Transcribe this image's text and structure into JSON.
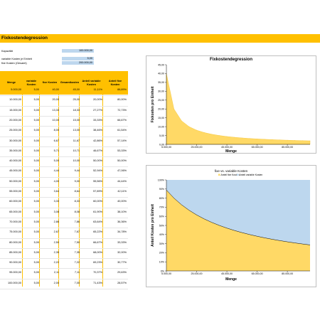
{
  "sheet": {
    "title": "Fixkostendegression"
  },
  "inputs": [
    {
      "label": "Kapazität",
      "value": "100.000,00"
    },
    {
      "label": "variable Kosten je Einheit",
      "value": "5,00"
    },
    {
      "label": "fixe Kosten (Gesamt)",
      "value": "200.000,00"
    }
  ],
  "table": {
    "headers": [
      "Menge",
      "variable Kosten",
      "fixe Kosten",
      "Gesamtkosten",
      "Anteil variable Kosten",
      "Anteil fixe Kosten"
    ],
    "rows": [
      [
        "5.000,00",
        "5,00",
        "40,00",
        "45,00",
        "11,11%",
        "88,89%"
      ],
      [
        "10.000,00",
        "5,00",
        "20,00",
        "25,00",
        "20,00%",
        "80,00%"
      ],
      [
        "15.000,00",
        "5,00",
        "13,33",
        "18,33",
        "27,27%",
        "72,73%"
      ],
      [
        "20.000,00",
        "5,00",
        "10,00",
        "15,00",
        "33,33%",
        "66,67%"
      ],
      [
        "25.000,00",
        "5,00",
        "8,00",
        "13,00",
        "38,46%",
        "61,54%"
      ],
      [
        "30.000,00",
        "5,00",
        "6,67",
        "11,67",
        "42,86%",
        "57,14%"
      ],
      [
        "35.000,00",
        "5,00",
        "5,71",
        "10,71",
        "46,67%",
        "53,33%"
      ],
      [
        "40.000,00",
        "5,00",
        "5,00",
        "10,00",
        "50,00%",
        "50,00%"
      ],
      [
        "45.000,00",
        "5,00",
        "4,44",
        "9,44",
        "52,94%",
        "47,06%"
      ],
      [
        "50.000,00",
        "5,00",
        "4,00",
        "9,00",
        "55,56%",
        "44,44%"
      ],
      [
        "55.000,00",
        "5,00",
        "3,64",
        "8,64",
        "57,89%",
        "42,11%"
      ],
      [
        "60.000,00",
        "5,00",
        "3,33",
        "8,33",
        "60,00%",
        "40,00%"
      ],
      [
        "65.000,00",
        "5,00",
        "3,08",
        "8,08",
        "61,90%",
        "38,10%"
      ],
      [
        "70.000,00",
        "5,00",
        "2,86",
        "7,86",
        "63,64%",
        "36,36%"
      ],
      [
        "75.000,00",
        "5,00",
        "2,67",
        "7,67",
        "65,22%",
        "34,78%"
      ],
      [
        "80.000,00",
        "5,00",
        "2,50",
        "7,50",
        "66,67%",
        "33,33%"
      ],
      [
        "85.000,00",
        "5,00",
        "2,35",
        "7,35",
        "68,00%",
        "32,00%"
      ],
      [
        "90.000,00",
        "5,00",
        "2,22",
        "7,22",
        "69,23%",
        "30,77%"
      ],
      [
        "95.000,00",
        "5,00",
        "2,11",
        "7,11",
        "70,37%",
        "29,63%"
      ],
      [
        "100.000,00",
        "5,00",
        "2,00",
        "7,00",
        "71,43%",
        "28,57%"
      ]
    ]
  },
  "colors": {
    "accent": "#FFC000",
    "input": "#BDD7EE",
    "area_yellow": "#FFD966",
    "area_blue": "#BDD7EE"
  },
  "chart_data": [
    {
      "type": "area",
      "title": "Fixkostendegression",
      "xlabel": "Menge",
      "ylabel": "Fixkosten pro Einheit",
      "x": [
        5000,
        10000,
        15000,
        20000,
        25000,
        30000,
        35000,
        40000,
        45000,
        50000,
        55000,
        60000,
        65000,
        70000,
        75000,
        80000,
        85000,
        90000,
        95000,
        100000
      ],
      "series": [
        {
          "values": [
            40,
            20,
            13.33,
            10,
            8,
            6.67,
            5.71,
            5,
            4.44,
            4,
            3.64,
            3.33,
            3.08,
            2.86,
            2.67,
            2.5,
            2.35,
            2.22,
            2.11,
            2
          ]
        }
      ],
      "xlim": [
        5000,
        100000
      ],
      "ylim": [
        0,
        45
      ],
      "yticks": [
        "0,00",
        "5,00",
        "10,00",
        "15,00",
        "20,00",
        "25,00",
        "30,00",
        "35,00",
        "40,00",
        "45,00"
      ],
      "xticks": [
        "5.000,00",
        "25.000,00",
        "45.000,00",
        "65.000,00",
        "85.000,00"
      ],
      "grid": false
    },
    {
      "type": "area",
      "title": "fixe vs. variable Kosten",
      "xlabel": "Menge",
      "ylabel": "Anteil Kosten pro Einheit",
      "legend": [
        "Anteil fixe Kosten",
        "Anteil variable Kosten"
      ],
      "legend_position": "top",
      "x": [
        5000,
        10000,
        15000,
        20000,
        25000,
        30000,
        35000,
        40000,
        45000,
        50000,
        55000,
        60000,
        65000,
        70000,
        75000,
        80000,
        85000,
        90000,
        95000,
        100000
      ],
      "series": [
        {
          "name": "Anteil fixe Kosten",
          "values": [
            88.89,
            80,
            72.73,
            66.67,
            61.54,
            57.14,
            53.33,
            50,
            47.06,
            44.44,
            42.11,
            40,
            38.1,
            36.36,
            34.78,
            33.33,
            32,
            30.77,
            29.63,
            28.57
          ]
        },
        {
          "name": "Anteil variable Kosten",
          "values": [
            11.11,
            20,
            27.27,
            33.33,
            38.46,
            42.86,
            46.67,
            50,
            52.94,
            55.56,
            57.89,
            60,
            61.9,
            63.64,
            65.22,
            66.67,
            68,
            69.23,
            70.37,
            71.43
          ]
        }
      ],
      "stacked": true,
      "xlim": [
        5000,
        100000
      ],
      "ylim": [
        0,
        100
      ],
      "yticks": [
        "0%",
        "10%",
        "20%",
        "30%",
        "40%",
        "50%",
        "60%",
        "70%",
        "80%",
        "90%",
        "100%"
      ],
      "xticks": [
        "5.000,00",
        "25.000,00",
        "45.000,00",
        "65.000,00",
        "85.000,00"
      ],
      "grid": false
    }
  ]
}
